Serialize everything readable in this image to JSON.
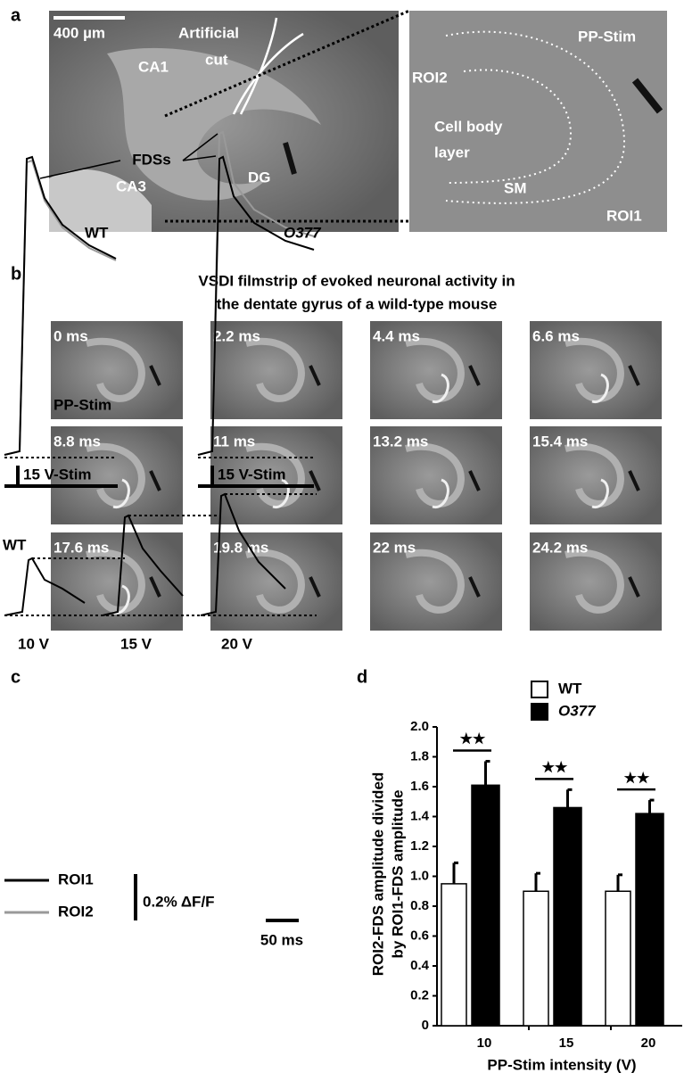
{
  "panel_labels": [
    "a",
    "b",
    "c",
    "d"
  ],
  "panel_a": {
    "scale_bar": "400 µm",
    "artificial": "Artificial",
    "cut": "cut",
    "ca1": "CA1",
    "ca3": "CA3",
    "dg": "DG",
    "pp_stim": "PP-Stim",
    "roi2": "ROI2",
    "cell_body": "Cell body",
    "layer": "layer",
    "sm": "SM",
    "roi1": "ROI1"
  },
  "panel_b": {
    "title": [
      "VSDI filmstrip of evoked neuronal activity in",
      "the dentate gyrus of a wild-type mouse"
    ],
    "frames": [
      "0 ms",
      "2.2 ms",
      "4.4 ms",
      "6.6 ms",
      "8.8 ms",
      "11 ms",
      "13.2 ms",
      "15.4 ms",
      "17.6 ms",
      "19.8 ms",
      "22 ms",
      "24.2 ms"
    ],
    "stim_label": "PP-Stim"
  },
  "panel_c": {
    "fdss": "FDSs",
    "wt": "WT",
    "o377": "O377",
    "stim": [
      "15 V-Stim",
      "15 V-Stim"
    ],
    "wt_bottom": "WT",
    "intensities": [
      "10 V",
      "15 V",
      "20 V"
    ],
    "legend": [
      "ROI1",
      "ROI2"
    ],
    "scale_y": "0.2% ΔF/F",
    "scale_x": "50 ms"
  },
  "chart_data": {
    "type": "bar",
    "y_label": [
      "ROI2-FDS amplitude divided",
      "by ROI1-FDS amplitude"
    ],
    "x_label": "PP-Stim intensity (V)",
    "categories": [
      "10",
      "15",
      "20"
    ],
    "series": [
      {
        "name": "WT",
        "color": "#ffffff",
        "values": [
          0.95,
          0.9,
          0.9
        ],
        "errors": [
          0.14,
          0.12,
          0.11
        ]
      },
      {
        "name": "O377",
        "color": "#000000",
        "values": [
          1.61,
          1.46,
          1.42
        ],
        "errors": [
          0.16,
          0.12,
          0.09
        ]
      }
    ],
    "ylim": [
      0,
      2
    ],
    "yticks": [
      0,
      0.2,
      0.4,
      0.6,
      0.8,
      {
        "value": 1,
        "label": "1.0"
      },
      1.2,
      1.4,
      1.6,
      1.8,
      {
        "value": 2,
        "label": "2.0"
      }
    ],
    "annotations": [
      "★★",
      "★★",
      "★★"
    ]
  }
}
